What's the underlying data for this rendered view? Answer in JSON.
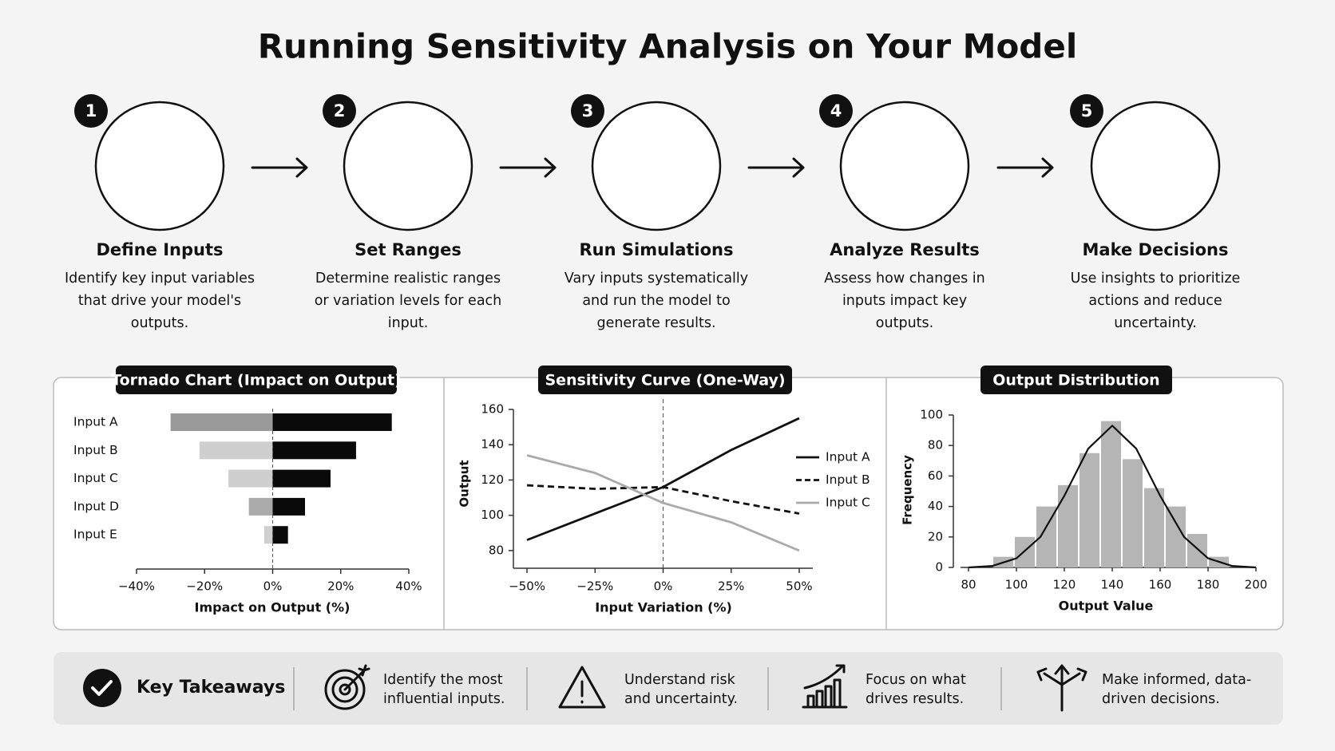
{
  "title": "Running Sensitivity Analysis on Your Model",
  "steps": [
    {
      "number": "1",
      "title": "Define Inputs",
      "lines": [
        "Identify key input variables",
        "that drive your model's",
        "outputs."
      ]
    },
    {
      "number": "2",
      "title": "Set Ranges",
      "lines": [
        "Determine realistic ranges",
        "or variation levels for each",
        "input."
      ]
    },
    {
      "number": "3",
      "title": "Run Simulations",
      "lines": [
        "Vary inputs systematically",
        "and run the model to",
        "generate results."
      ]
    },
    {
      "number": "4",
      "title": "Analyze Results",
      "lines": [
        "Assess how changes in",
        "inputs impact key",
        "outputs."
      ]
    },
    {
      "number": "5",
      "title": "Make Decisions",
      "lines": [
        "Use insights to prioritize",
        "actions and reduce",
        "uncertainty."
      ]
    }
  ],
  "chart_data": [
    {
      "type": "tornado",
      "title": "Tornado Chart (Impact on Output)",
      "x_label": "Impact on Output (%)",
      "categories": [
        "Input A",
        "Input B",
        "Input C",
        "Input D",
        "Input E"
      ],
      "series": [
        {
          "colors": [
            "#9a9a9a",
            "#cfcfcf",
            "#cfcfcf",
            "#aaaaaa",
            "#cfcfcf"
          ],
          "values": [
            -30,
            -21.5,
            -13,
            -7,
            -2.5
          ]
        },
        {
          "color": "#0a0a0a",
          "values": [
            35,
            24.5,
            17,
            9.5,
            4.5
          ]
        }
      ],
      "xlim": [
        -40,
        40
      ],
      "xticks": [
        {
          "value": -40,
          "label": "−40%"
        },
        {
          "value": -20,
          "label": "−20%"
        },
        {
          "value": 0,
          "label": "0%"
        },
        {
          "value": 20,
          "label": "20%"
        },
        {
          "value": 40,
          "label": "40%"
        }
      ]
    },
    {
      "type": "line",
      "title": "Sensitivity Curve (One-Way)",
      "x_label": "Input Variation (%)",
      "y_label": "Output",
      "x": [
        -50,
        -25,
        0,
        25,
        50
      ],
      "series": [
        {
          "name": "Input A",
          "color": "#111111",
          "dashed": false,
          "values": [
            86,
            101,
            116,
            137,
            155
          ]
        },
        {
          "name": "Input B",
          "color": "#111111",
          "dashed": true,
          "values": [
            117,
            115,
            116,
            108,
            101
          ]
        },
        {
          "name": "Input C",
          "color": "#aaaaaa",
          "dashed": false,
          "values": [
            134,
            124,
            107,
            96,
            80
          ]
        }
      ],
      "xlim": [
        -55,
        55
      ],
      "xticks": [
        {
          "value": -50,
          "label": "−50%"
        },
        {
          "value": -25,
          "label": "−25%"
        },
        {
          "value": 0,
          "label": "0%"
        },
        {
          "value": 25,
          "label": "25%"
        },
        {
          "value": 50,
          "label": "50%"
        }
      ],
      "ylim": [
        70,
        160
      ],
      "yticks": [
        80,
        100,
        120,
        140,
        160
      ]
    },
    {
      "type": "histogram",
      "title": "Output Distribution",
      "x_label": "Output Value",
      "y_label": "Frequency",
      "bins": [
        90,
        99,
        108,
        117,
        126,
        135,
        144,
        153,
        162,
        171,
        180,
        189
      ],
      "values": [
        7,
        20,
        40,
        54,
        75,
        96,
        71,
        52,
        40,
        22,
        7
      ],
      "color": "#b5b5b5",
      "curve": {
        "x": [
          80,
          90,
          100,
          110,
          120,
          130,
          140,
          150,
          160,
          170,
          180,
          190,
          200
        ],
        "values": [
          0,
          1,
          6,
          20,
          47,
          78,
          93,
          78,
          47,
          20,
          6,
          1,
          0
        ]
      },
      "xlim": [
        80,
        200
      ],
      "xticks": [
        80,
        100,
        120,
        140,
        160,
        180,
        200
      ],
      "ylim": [
        0,
        100
      ],
      "yticks": [
        0,
        20,
        40,
        60,
        80,
        100
      ]
    }
  ],
  "takeaways": {
    "title": "Key Takeaways",
    "items": [
      [
        "Identify the most",
        "influential inputs."
      ],
      [
        "Understand risk",
        "and uncertainty."
      ],
      [
        "Focus on what",
        "drives results."
      ],
      [
        "Make informed, data-",
        "driven decisions."
      ]
    ]
  }
}
